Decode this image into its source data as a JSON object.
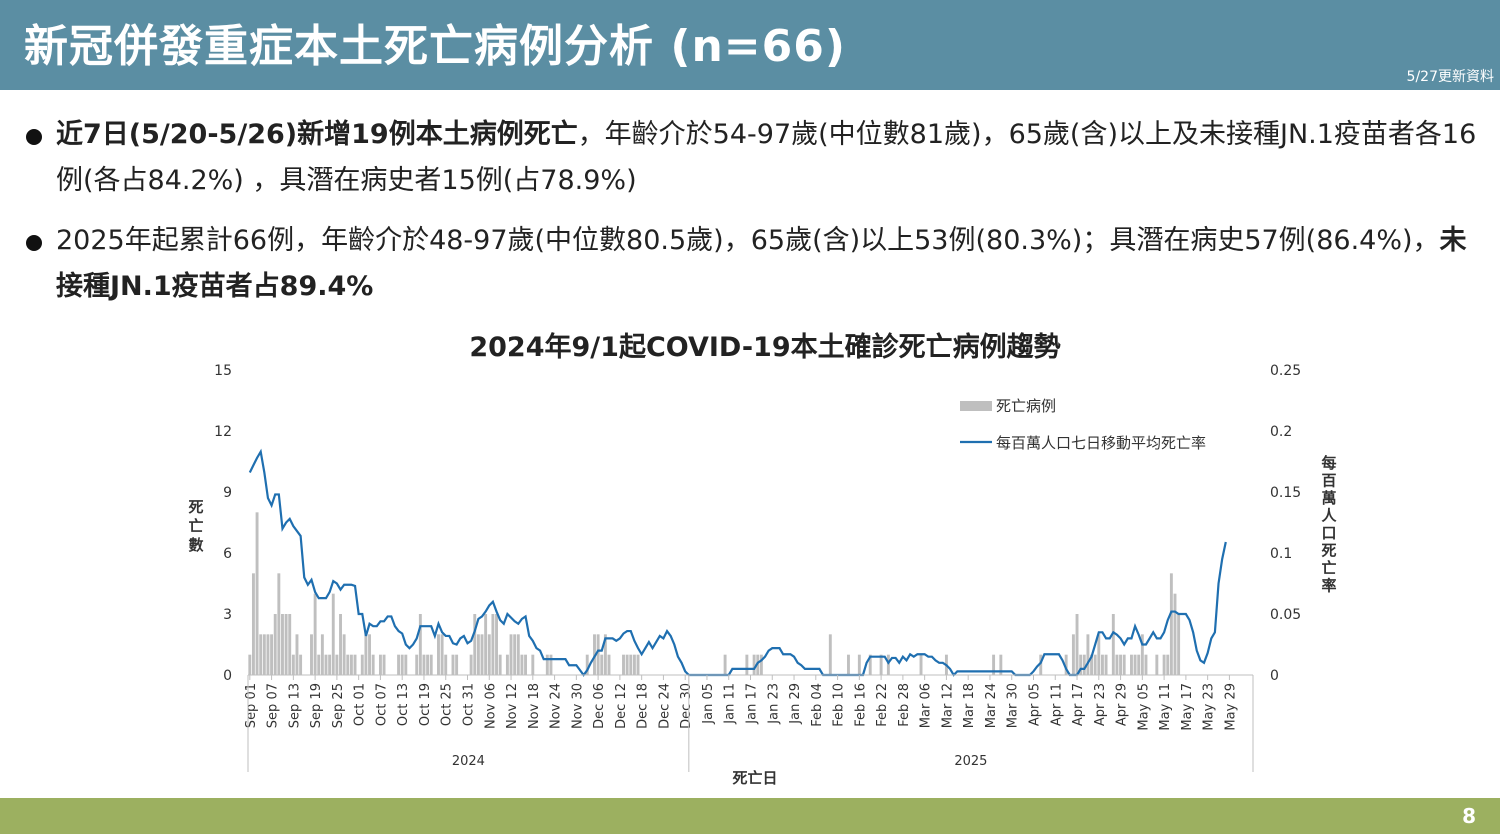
{
  "header": {
    "title": "新冠併發重症本土死亡病例分析",
    "n_label": "(n=66)",
    "update": "5/27更新資料"
  },
  "bullets": [
    {
      "bold": "近7日(5/20-5/26)新增19例本土病例死亡",
      "normal": "，年齡介於54-97歲(中位數81歲)，65歲(含)以上及未接種JN.1疫苗者各16例(各占84.2%) ，具潛在病史者15例(占78.9%)"
    },
    {
      "normal": "2025年起累計66例，年齡介於48-97歲(中位數80.5歲)，65歲(含)以上53例(80.3%)；具潛在病史57例(86.4%)，",
      "bold": "未接種JN.1疫苗者占89.4%"
    }
  ],
  "footer": {
    "page": "8"
  },
  "colors": {
    "header": "#5b8ea3",
    "footer": "#9cb060",
    "bar": "#bfbfbf",
    "line": "#1f6fb0"
  },
  "chart_data": {
    "type": "bar+line",
    "title": "2024年9/1起COVID-19本土確診死亡病例趨勢",
    "xlabel": "死亡日",
    "ylabel_left": "死亡數",
    "ylabel_right": "每百萬人口死亡率",
    "ylim_left": [
      0,
      15
    ],
    "yticks_left": [
      "0",
      "3",
      "6",
      "9",
      "12",
      "15"
    ],
    "ylim_right": [
      0,
      0.25
    ],
    "yticks_right": [
      "0",
      "0.05",
      "0.1",
      "0.15",
      "0.2",
      "0.25"
    ],
    "x_start": "2024-09-01",
    "x_end": "2025-06-04",
    "xticks": [
      "Sep 01",
      "Sep 07",
      "Sep 13",
      "Sep 19",
      "Sep 25",
      "Oct 01",
      "Oct 07",
      "Oct 13",
      "Oct 19",
      "Oct 25",
      "Oct 31",
      "Nov 06",
      "Nov 12",
      "Nov 18",
      "Nov 24",
      "Nov 30",
      "Dec 06",
      "Dec 12",
      "Dec 18",
      "Dec 24",
      "Dec 30",
      "Jan 05",
      "Jan 11",
      "Jan 17",
      "Jan 23",
      "Jan 29",
      "Feb 04",
      "Feb 10",
      "Feb 16",
      "Feb 22",
      "Feb 28",
      "Mar 06",
      "Mar 12",
      "Mar 18",
      "Mar 24",
      "Mar 30",
      "Apr 05",
      "Apr 11",
      "Apr 17",
      "Apr 23",
      "Apr 29",
      "May 05",
      "May 11",
      "May 17",
      "May 23",
      "May 29"
    ],
    "years": [
      {
        "label": "2024"
      },
      {
        "label": "2025"
      }
    ],
    "legend": {
      "position": "top-right",
      "bar_label": "死亡病例",
      "line_label": "每百萬人口七日移動平均死亡率"
    },
    "daily_deaths": [
      1,
      5,
      8,
      2,
      2,
      2,
      2,
      3,
      5,
      3,
      3,
      3,
      1,
      2,
      1,
      0,
      0,
      2,
      4,
      1,
      2,
      1,
      1,
      4,
      1,
      3,
      2,
      1,
      1,
      1,
      0,
      1,
      2,
      2,
      1,
      0,
      1,
      1,
      0,
      0,
      0,
      1,
      1,
      1,
      0,
      0,
      1,
      3,
      1,
      1,
      1,
      0,
      2,
      2,
      1,
      0,
      1,
      1,
      0,
      0,
      0,
      1,
      3,
      2,
      2,
      3,
      2,
      3,
      3,
      1,
      0,
      1,
      2,
      2,
      2,
      1,
      1,
      0,
      1,
      0,
      0,
      0,
      1,
      1,
      0,
      0,
      0,
      0,
      0,
      0,
      0,
      0,
      0,
      1,
      0,
      2,
      2,
      1,
      2,
      1,
      0,
      0,
      0,
      1,
      1,
      1,
      1,
      1,
      0,
      0,
      0,
      0,
      0,
      0,
      0,
      0,
      0,
      0,
      0,
      0,
      0,
      0,
      0,
      0,
      0,
      0,
      0,
      0,
      0,
      0,
      0,
      1,
      0,
      0,
      0,
      0,
      0,
      1,
      0,
      1,
      1,
      1,
      0,
      0,
      0,
      0,
      0,
      0,
      0,
      0,
      0,
      0,
      0,
      0,
      0,
      0,
      0,
      0,
      0,
      0,
      2,
      0,
      0,
      0,
      0,
      1,
      0,
      0,
      1,
      0,
      0,
      1,
      0,
      0,
      1,
      0,
      1,
      0,
      0,
      0,
      0,
      0,
      0,
      0,
      0,
      1,
      0,
      0,
      0,
      0,
      0,
      0,
      1,
      0,
      0,
      0,
      0,
      0,
      0,
      0,
      0,
      0,
      0,
      0,
      0,
      1,
      0,
      1,
      0,
      0,
      0,
      0,
      0,
      0,
      0,
      0,
      0,
      0,
      1,
      0,
      0,
      0,
      0,
      0,
      0,
      1,
      0,
      2,
      3,
      1,
      1,
      2,
      1,
      1,
      2,
      1,
      1,
      0,
      3,
      1,
      1,
      1,
      0,
      1,
      1,
      1,
      2,
      1,
      0,
      0,
      1,
      0,
      1,
      1,
      5,
      4,
      3
    ],
    "rolling_rate": [
      0.166,
      0.172,
      0.178,
      0.183,
      0.166,
      0.145,
      0.139,
      0.148,
      0.148,
      0.12,
      0.125,
      0.128,
      0.122,
      0.118,
      0.114,
      0.08,
      0.074,
      0.078,
      0.068,
      0.063,
      0.063,
      0.063,
      0.068,
      0.077,
      0.075,
      0.07,
      0.074,
      0.074,
      0.074,
      0.073,
      0.05,
      0.05,
      0.032,
      0.042,
      0.04,
      0.04,
      0.044,
      0.044,
      0.048,
      0.048,
      0.04,
      0.036,
      0.034,
      0.025,
      0.022,
      0.025,
      0.03,
      0.04,
      0.04,
      0.04,
      0.04,
      0.032,
      0.042,
      0.035,
      0.032,
      0.032,
      0.026,
      0.025,
      0.03,
      0.032,
      0.026,
      0.028,
      0.036,
      0.046,
      0.048,
      0.052,
      0.057,
      0.06,
      0.052,
      0.045,
      0.042,
      0.05,
      0.047,
      0.044,
      0.042,
      0.046,
      0.048,
      0.032,
      0.028,
      0.022,
      0.02,
      0.013,
      0.013,
      0.013,
      0.013,
      0.013,
      0.013,
      0.013,
      0.008,
      0.008,
      0.008,
      0.004,
      0.0,
      0.004,
      0.01,
      0.015,
      0.02,
      0.02,
      0.03,
      0.03,
      0.03,
      0.028,
      0.03,
      0.034,
      0.036,
      0.036,
      0.028,
      0.022,
      0.017,
      0.022,
      0.027,
      0.022,
      0.027,
      0.032,
      0.03,
      0.036,
      0.032,
      0.025,
      0.015,
      0.01,
      0.003,
      0.0,
      0.0,
      0.0,
      0.0,
      0.0,
      0.0,
      0.0,
      0.0,
      0.0,
      0.0,
      0.0,
      0.0,
      0.005,
      0.005,
      0.005,
      0.005,
      0.005,
      0.005,
      0.005,
      0.01,
      0.012,
      0.015,
      0.02,
      0.022,
      0.022,
      0.022,
      0.017,
      0.017,
      0.017,
      0.015,
      0.01,
      0.008,
      0.005,
      0.005,
      0.005,
      0.005,
      0.005,
      0.0,
      0.0,
      0.0,
      0.0,
      0.0,
      0.0,
      0.0,
      0.0,
      0.0,
      0.0,
      0.0,
      0.0,
      0.01,
      0.015,
      0.015,
      0.015,
      0.015,
      0.015,
      0.01,
      0.014,
      0.014,
      0.01,
      0.015,
      0.012,
      0.017,
      0.015,
      0.017,
      0.017,
      0.017,
      0.015,
      0.015,
      0.012,
      0.01,
      0.01,
      0.008,
      0.005,
      0.0,
      0.003,
      0.003,
      0.003,
      0.003,
      0.003,
      0.003,
      0.003,
      0.003,
      0.003,
      0.003,
      0.003,
      0.003,
      0.003,
      0.003,
      0.003,
      0.003,
      0.0,
      0.0,
      0.0,
      0.0,
      0.0,
      0.003,
      0.007,
      0.01,
      0.017,
      0.017,
      0.017,
      0.017,
      0.017,
      0.012,
      0.005,
      0.0,
      0.0,
      0.0,
      0.005,
      0.005,
      0.01,
      0.015,
      0.025,
      0.035,
      0.035,
      0.03,
      0.03,
      0.035,
      0.033,
      0.03,
      0.025,
      0.03,
      0.03,
      0.04,
      0.033,
      0.025,
      0.025,
      0.03,
      0.035,
      0.03,
      0.03,
      0.035,
      0.045,
      0.052,
      0.052,
      0.05,
      0.05,
      0.05,
      0.045,
      0.035,
      0.02,
      0.012,
      0.01,
      0.018,
      0.03,
      0.035,
      0.075,
      0.095,
      0.109
    ]
  }
}
